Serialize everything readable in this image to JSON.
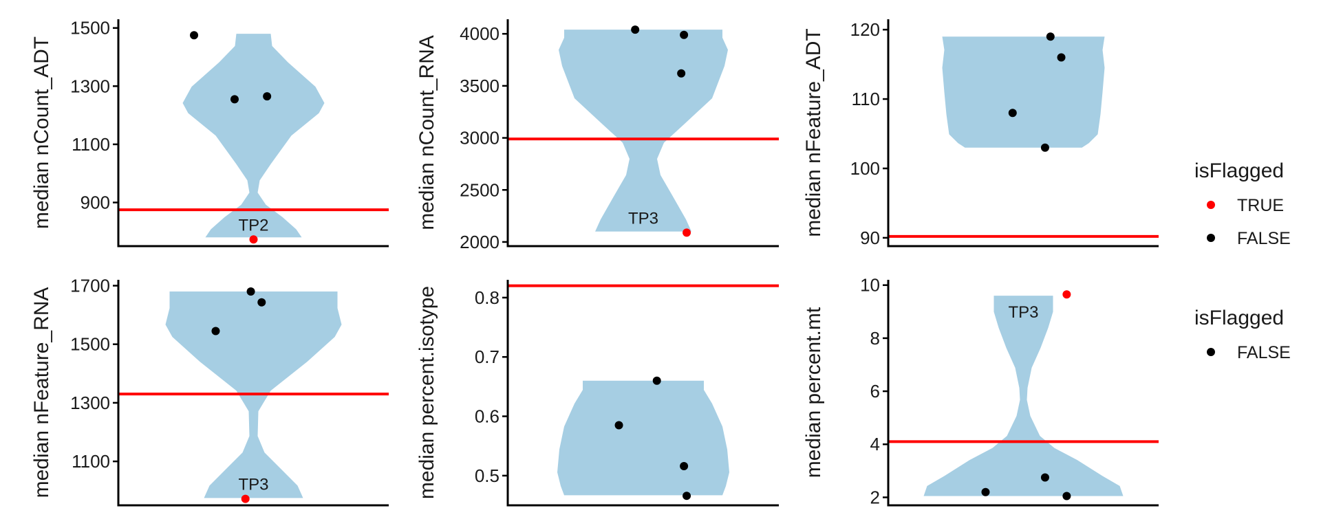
{
  "chart_data": [
    {
      "type": "violin",
      "ylabel": "median nCount_ADT",
      "yticks": [
        900,
        1100,
        1300,
        1500
      ],
      "ylim": [
        750,
        1530
      ],
      "violin": {
        "min": 780,
        "max": 1480,
        "color": "#a6cee3"
      },
      "threshold": 875,
      "points": [
        {
          "x": 0.28,
          "y": 1475,
          "flagged": false
        },
        {
          "x": 0.43,
          "y": 1255,
          "flagged": false
        },
        {
          "x": 0.55,
          "y": 1265,
          "flagged": false
        },
        {
          "x": 0.5,
          "y": 773,
          "flagged": true,
          "label": "TP2"
        }
      ]
    },
    {
      "type": "violin",
      "ylabel": "median nCount_RNA",
      "yticks": [
        2000,
        2500,
        3000,
        3500,
        4000
      ],
      "ylim": [
        1960,
        4140
      ],
      "violin": {
        "min": 2100,
        "max": 4040,
        "color": "#a6cee3"
      },
      "threshold": 2990,
      "points": [
        {
          "x": 0.47,
          "y": 4040,
          "flagged": false
        },
        {
          "x": 0.65,
          "y": 3990,
          "flagged": false
        },
        {
          "x": 0.64,
          "y": 3620,
          "flagged": false
        },
        {
          "x": 0.66,
          "y": 2090,
          "flagged": true,
          "label": "TP3"
        }
      ]
    },
    {
      "type": "violin",
      "ylabel": "median nFeature_ADT",
      "yticks": [
        90,
        100,
        110,
        120
      ],
      "ylim": [
        88.8,
        121.5
      ],
      "violin": {
        "min": 103,
        "max": 119,
        "color": "#a6cee3"
      },
      "threshold": 90.2,
      "points": [
        {
          "x": 0.6,
          "y": 119,
          "flagged": false
        },
        {
          "x": 0.64,
          "y": 116,
          "flagged": false
        },
        {
          "x": 0.46,
          "y": 108,
          "flagged": false
        },
        {
          "x": 0.58,
          "y": 103,
          "flagged": false
        }
      ]
    },
    {
      "type": "violin",
      "ylabel": "median nFeature_RNA",
      "yticks": [
        1100,
        1300,
        1500,
        1700
      ],
      "ylim": [
        950,
        1720
      ],
      "violin": {
        "min": 975,
        "max": 1680,
        "color": "#a6cee3"
      },
      "threshold": 1330,
      "points": [
        {
          "x": 0.49,
          "y": 1680,
          "flagged": false
        },
        {
          "x": 0.53,
          "y": 1643,
          "flagged": false
        },
        {
          "x": 0.36,
          "y": 1545,
          "flagged": false
        },
        {
          "x": 0.47,
          "y": 972,
          "flagged": true,
          "label": "TP3"
        }
      ]
    },
    {
      "type": "violin",
      "ylabel": "median percent.isotype",
      "yticks": [
        0.5,
        0.6,
        0.7,
        0.8
      ],
      "ylim": [
        0.45,
        0.83
      ],
      "violin": {
        "min": 0.467,
        "max": 0.66,
        "color": "#a6cee3"
      },
      "threshold": 0.82,
      "points": [
        {
          "x": 0.55,
          "y": 0.66,
          "flagged": false
        },
        {
          "x": 0.41,
          "y": 0.585,
          "flagged": false
        },
        {
          "x": 0.65,
          "y": 0.516,
          "flagged": false
        },
        {
          "x": 0.66,
          "y": 0.466,
          "flagged": false
        }
      ]
    },
    {
      "type": "violin",
      "ylabel": "median percent.mt",
      "yticks": [
        2,
        4,
        6,
        8,
        10
      ],
      "ylim": [
        1.7,
        10.2
      ],
      "violin": {
        "min": 2.05,
        "max": 9.6,
        "color": "#a6cee3"
      },
      "threshold": 4.1,
      "points": [
        {
          "x": 0.66,
          "y": 9.65,
          "flagged": true,
          "label": "TP3"
        },
        {
          "x": 0.58,
          "y": 2.75,
          "flagged": false
        },
        {
          "x": 0.36,
          "y": 2.2,
          "flagged": false
        },
        {
          "x": 0.66,
          "y": 2.05,
          "flagged": false
        }
      ]
    }
  ],
  "legends": [
    {
      "title": "isFlagged",
      "items": [
        {
          "label": "TRUE",
          "color": "#ff0000"
        },
        {
          "label": "FALSE",
          "color": "#000000"
        }
      ]
    },
    {
      "title": "isFlagged",
      "items": [
        {
          "label": "FALSE",
          "color": "#000000"
        }
      ]
    }
  ],
  "colors": {
    "threshold": "#ff0000",
    "violin_fill": "#a6cee3",
    "point_true": "#ff0000",
    "point_false": "#000000"
  }
}
